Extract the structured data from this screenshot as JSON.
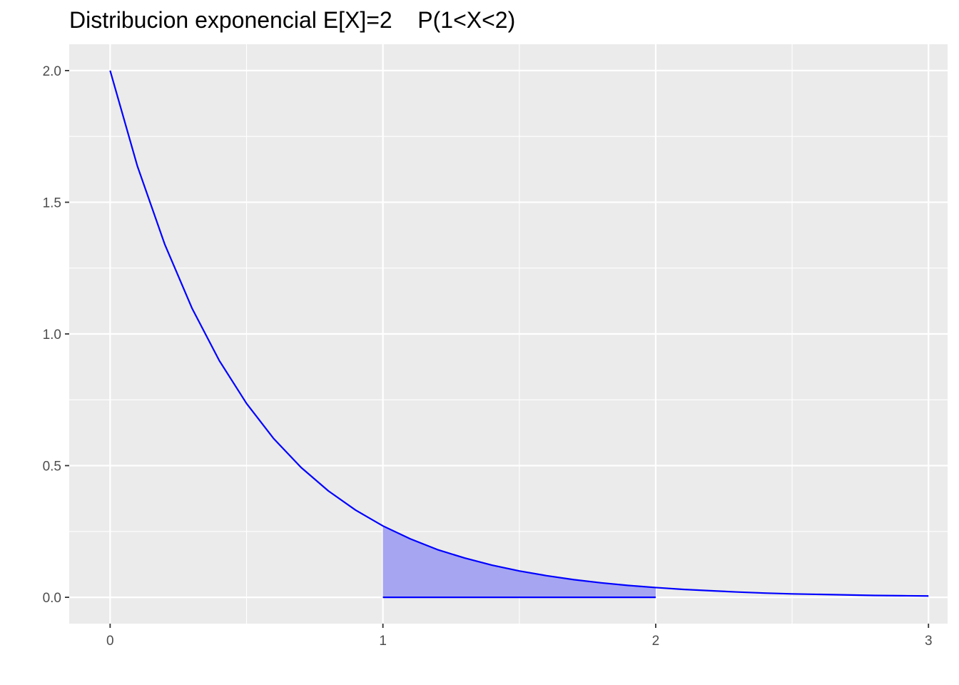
{
  "chart_data": {
    "type": "area",
    "title": "Distribucion exponencial E[X]=2    P(1<X<2)",
    "xlabel": "",
    "ylabel": "",
    "xlim": [
      -0.15,
      3.07
    ],
    "ylim": [
      -0.1,
      2.1
    ],
    "x_ticks": [
      0,
      1,
      2,
      3
    ],
    "x_minor_ticks": [
      0.5,
      1.5,
      2.5
    ],
    "y_ticks": [
      0.0,
      0.5,
      1.0,
      1.5,
      2.0
    ],
    "y_minor_ticks": [
      0.25,
      0.75,
      1.25,
      1.75
    ],
    "x_tick_labels": [
      "0",
      "1",
      "2",
      "3"
    ],
    "y_tick_labels": [
      "0.0",
      "0.5",
      "1.0",
      "1.5",
      "2.0"
    ],
    "grid": true,
    "series": [
      {
        "role": "density-curve",
        "color": "#0000ff",
        "x": [
          0,
          0.1,
          0.2,
          0.3,
          0.4,
          0.5,
          0.6,
          0.7,
          0.8,
          0.9,
          1.0,
          1.1,
          1.2,
          1.3,
          1.4,
          1.5,
          1.6,
          1.7,
          1.8,
          1.9,
          2.0,
          2.1,
          2.2,
          2.3,
          2.4,
          2.5,
          2.6,
          2.7,
          2.8,
          2.9,
          3.0
        ],
        "y": [
          2.0,
          1.637,
          1.341,
          1.098,
          0.899,
          0.736,
          0.602,
          0.493,
          0.404,
          0.331,
          0.271,
          0.222,
          0.181,
          0.149,
          0.122,
          0.1,
          0.082,
          0.067,
          0.055,
          0.045,
          0.037,
          0.03,
          0.025,
          0.02,
          0.016,
          0.013,
          0.011,
          0.009,
          0.007,
          0.006,
          0.005
        ]
      },
      {
        "role": "shaded-area",
        "color": "#0000ff",
        "fill": "#a5a5f2",
        "x": [
          1.0,
          1.1,
          1.2,
          1.3,
          1.4,
          1.5,
          1.6,
          1.7,
          1.8,
          1.9,
          2.0
        ],
        "y": [
          0.271,
          0.222,
          0.181,
          0.149,
          0.122,
          0.1,
          0.082,
          0.067,
          0.055,
          0.045,
          0.037
        ]
      }
    ],
    "colors": {
      "panel_background": "#ebebeb",
      "grid": "#ffffff",
      "curve": "#0000ff",
      "area_fill": "#a5a5f2",
      "tick_text": "#4d4d4d"
    }
  }
}
